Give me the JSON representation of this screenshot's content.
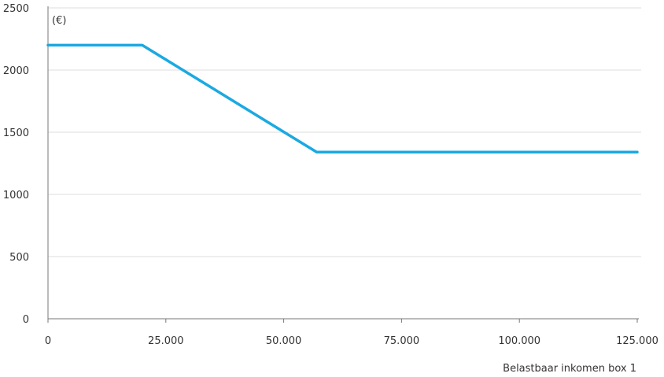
{
  "chart_data": {
    "type": "line",
    "unit_label": "(€)",
    "xlabel": "Belastbaar inkomen box 1",
    "ylabel": "",
    "xlim": [
      0,
      125000
    ],
    "ylim": [
      0,
      2500
    ],
    "x_ticks": [
      0,
      25000,
      50000,
      75000,
      100000,
      125000
    ],
    "x_tick_labels": [
      "0",
      "25.000",
      "50.000",
      "75.000",
      "100.000",
      "125.000"
    ],
    "y_ticks": [
      0,
      500,
      1000,
      1500,
      2000,
      2500
    ],
    "y_tick_labels": [
      "0",
      "500",
      "1000",
      "1500",
      "2000",
      "2500"
    ],
    "grid": "horizontal",
    "colors": {
      "line": "#1ba9e1",
      "grid": "#dddddd",
      "axis": "#777777"
    },
    "series": [
      {
        "x": [
          0,
          20000,
          57000,
          125000
        ],
        "y": [
          2200,
          2200,
          1340,
          1340
        ]
      }
    ]
  }
}
